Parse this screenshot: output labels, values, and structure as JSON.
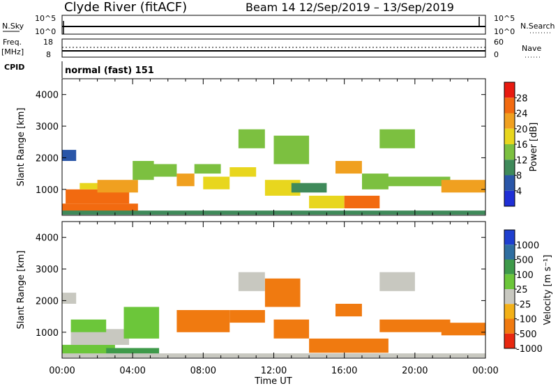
{
  "header": {
    "station_title": "Clyde River (fitACF)",
    "beam_title": "Beam 14  12/Sep/2019 – 13/Sep/2019"
  },
  "status_panels": {
    "nsky": {
      "label": "N.Sky",
      "ticks": [
        "10^5",
        "10^0"
      ],
      "right_label": "N.Search",
      "right_ticks": [
        "10^5",
        "10^0"
      ]
    },
    "freq": {
      "label_line1": "Freq.",
      "label_line2": "[MHz]",
      "ticks": [
        "18",
        "8"
      ],
      "right_label": "Nave",
      "right_ticks": [
        "60",
        "0"
      ]
    },
    "cpid": {
      "label": "CPID",
      "program": "normal (fast) 151"
    }
  },
  "panels": {
    "power": {
      "ylabel": "Slant Range [km]",
      "colorbar_label": "Power [dB]"
    },
    "velocity": {
      "ylabel": "Slant Range [km]",
      "colorbar_label": "Velocity [m s⁻¹]"
    }
  },
  "xaxis": {
    "label": "Time UT"
  },
  "chart_data": [
    {
      "type": "heatmap",
      "title": "Power",
      "ylabel": "Slant Range [km]",
      "xlabel": "Time UT",
      "x_ticks": [
        "00:00",
        "04:00",
        "08:00",
        "12:00",
        "16:00",
        "20:00",
        "00:00"
      ],
      "xlim_hours": [
        0,
        24
      ],
      "y_ticks": [
        1000,
        2000,
        3000,
        4000
      ],
      "ylim": [
        180,
        4500
      ],
      "colorbar": {
        "label": "Power [dB]",
        "ticks": [
          4,
          8,
          12,
          16,
          20,
          24,
          28
        ],
        "range": [
          0,
          30
        ],
        "colors": [
          "#1f2fd6",
          "#2a56a8",
          "#3f8a5a",
          "#7cc040",
          "#e8d61e",
          "#f0a020",
          "#f26a10",
          "#e81a10"
        ]
      },
      "regions": [
        {
          "t0": 0.0,
          "t1": 0.8,
          "r0": 1900,
          "r1": 2250,
          "v": 7
        },
        {
          "t0": 0.0,
          "t1": 4.3,
          "r0": 250,
          "r1": 550,
          "v": 27
        },
        {
          "t0": 0.2,
          "t1": 3.8,
          "r0": 550,
          "r1": 1000,
          "v": 25
        },
        {
          "t0": 1.0,
          "t1": 3.6,
          "r0": 1000,
          "r1": 1200,
          "v": 16
        },
        {
          "t0": 2.0,
          "t1": 4.3,
          "r0": 900,
          "r1": 1300,
          "v": 22
        },
        {
          "t0": 4.0,
          "t1": 5.2,
          "r0": 1300,
          "r1": 1900,
          "v": 15
        },
        {
          "t0": 5.0,
          "t1": 6.5,
          "r0": 1400,
          "r1": 1800,
          "v": 14
        },
        {
          "t0": 6.5,
          "t1": 7.5,
          "r0": 1100,
          "r1": 1500,
          "v": 21
        },
        {
          "t0": 7.5,
          "t1": 9.0,
          "r0": 1500,
          "r1": 1800,
          "v": 15
        },
        {
          "t0": 8.0,
          "t1": 9.5,
          "r0": 1000,
          "r1": 1400,
          "v": 17
        },
        {
          "t0": 9.5,
          "t1": 11.0,
          "r0": 1400,
          "r1": 1700,
          "v": 16
        },
        {
          "t0": 10.0,
          "t1": 11.5,
          "r0": 2300,
          "r1": 2900,
          "v": 12
        },
        {
          "t0": 11.5,
          "t1": 13.5,
          "r0": 800,
          "r1": 1300,
          "v": 18
        },
        {
          "t0": 12.0,
          "t1": 14.0,
          "r0": 1800,
          "r1": 2700,
          "v": 14
        },
        {
          "t0": 13.0,
          "t1": 15.0,
          "r0": 900,
          "r1": 1200,
          "v": 10
        },
        {
          "t0": 14.0,
          "t1": 16.0,
          "r0": 400,
          "r1": 800,
          "v": 19
        },
        {
          "t0": 16.0,
          "t1": 18.0,
          "r0": 400,
          "r1": 800,
          "v": 25
        },
        {
          "t0": 15.5,
          "t1": 17.0,
          "r0": 1500,
          "r1": 1900,
          "v": 20
        },
        {
          "t0": 17.0,
          "t1": 18.5,
          "r0": 1000,
          "r1": 1500,
          "v": 13
        },
        {
          "t0": 18.0,
          "t1": 20.0,
          "r0": 2300,
          "r1": 2900,
          "v": 13
        },
        {
          "t0": 18.0,
          "t1": 22.0,
          "r0": 1100,
          "r1": 1400,
          "v": 12
        },
        {
          "t0": 21.5,
          "t1": 24.0,
          "r0": 900,
          "r1": 1300,
          "v": 22
        },
        {
          "t0": 0.0,
          "t1": 24.0,
          "r0": 200,
          "r1": 330,
          "v": 10
        }
      ]
    },
    {
      "type": "heatmap",
      "title": "Velocity",
      "ylabel": "Slant Range [km]",
      "xlabel": "Time UT",
      "x_ticks": [
        "00:00",
        "04:00",
        "08:00",
        "12:00",
        "16:00",
        "20:00",
        "00:00"
      ],
      "xlim_hours": [
        0,
        24
      ],
      "y_ticks": [
        1000,
        2000,
        3000,
        4000
      ],
      "ylim": [
        180,
        4500
      ],
      "colorbar": {
        "label": "Velocity [m s⁻¹]",
        "tick_labels": [
          "1000",
          "500",
          "100",
          "25",
          "-25",
          "-100",
          "-500",
          "-1000"
        ],
        "colors": [
          "#1f3fcf",
          "#2f6ea0",
          "#3e9a4a",
          "#6cc63a",
          "#c8c8c0",
          "#f2b018",
          "#f07a10",
          "#e82810"
        ]
      },
      "regions": [
        {
          "t0": 0.0,
          "t1": 0.8,
          "r0": 1900,
          "r1": 2250,
          "v": 0
        },
        {
          "t0": 0.0,
          "t1": 3.0,
          "r0": 250,
          "r1": 600,
          "v": 60
        },
        {
          "t0": 0.5,
          "t1": 3.8,
          "r0": 600,
          "r1": 1100,
          "v": 10
        },
        {
          "t0": 0.5,
          "t1": 2.5,
          "r0": 1000,
          "r1": 1400,
          "v": 70
        },
        {
          "t0": 2.5,
          "t1": 5.5,
          "r0": 200,
          "r1": 500,
          "v": 300
        },
        {
          "t0": 3.5,
          "t1": 5.5,
          "r0": 800,
          "r1": 1800,
          "v": 80
        },
        {
          "t0": 6.5,
          "t1": 9.5,
          "r0": 1000,
          "r1": 1700,
          "v": -250
        },
        {
          "t0": 9.5,
          "t1": 11.5,
          "r0": 1300,
          "r1": 1700,
          "v": -300
        },
        {
          "t0": 10.0,
          "t1": 11.5,
          "r0": 2300,
          "r1": 2900,
          "v": 0
        },
        {
          "t0": 11.5,
          "t1": 13.5,
          "r0": 1800,
          "r1": 2700,
          "v": -200
        },
        {
          "t0": 12.0,
          "t1": 14.0,
          "r0": 800,
          "r1": 1400,
          "v": -150
        },
        {
          "t0": 14.0,
          "t1": 18.5,
          "r0": 350,
          "r1": 800,
          "v": -200
        },
        {
          "t0": 15.5,
          "t1": 17.0,
          "r0": 1500,
          "r1": 1900,
          "v": -120
        },
        {
          "t0": 18.0,
          "t1": 20.0,
          "r0": 2300,
          "r1": 2900,
          "v": 0
        },
        {
          "t0": 18.0,
          "t1": 22.0,
          "r0": 1000,
          "r1": 1400,
          "v": -200
        },
        {
          "t0": 21.5,
          "t1": 24.0,
          "r0": 900,
          "r1": 1300,
          "v": -300
        },
        {
          "t0": 0.0,
          "t1": 24.0,
          "r0": 200,
          "r1": 330,
          "v": 5
        }
      ]
    }
  ]
}
